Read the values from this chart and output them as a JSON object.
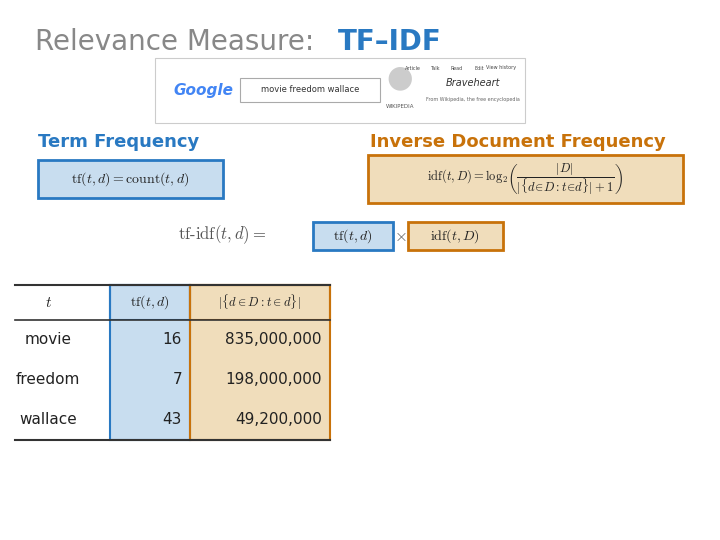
{
  "title_gray": "Relevance Measure: ",
  "title_tfidf": "TF–IDF",
  "title_gray_color": "#888888",
  "blue_color": "#2979C2",
  "orange_color": "#C8720A",
  "light_blue": "#C8DDEF",
  "light_orange": "#F0DDBB",
  "term_freq_label": "Term Frequency",
  "inv_doc_freq_label": "Inverse Document Frequency",
  "table_terms": [
    "movie",
    "freedom",
    "wallace"
  ],
  "table_tf": [
    "16",
    "7",
    "43"
  ],
  "table_idf": [
    "835,000,000",
    "198,000,000",
    "49,200,000"
  ]
}
